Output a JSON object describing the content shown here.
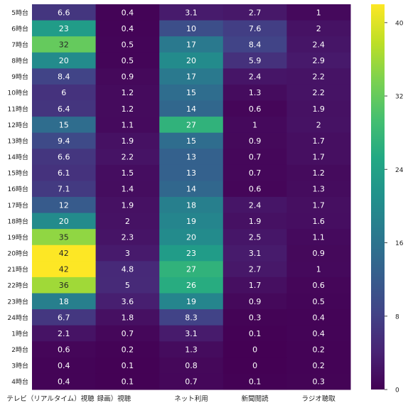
{
  "chart_data": {
    "type": "heatmap",
    "title": "",
    "xlabel": "",
    "ylabel": "",
    "columns": [
      "テレビ（リアルタイム）視聴",
      "録画）視聴",
      "ネット利用",
      "新聞閲読",
      "ラジオ聴取"
    ],
    "rows": [
      "5時台",
      "6時台",
      "7時台",
      "8時台",
      "9時台",
      "10時台",
      "11時台",
      "12時台",
      "13時台",
      "14時台",
      "15時台",
      "16時台",
      "17時台",
      "18時台",
      "19時台",
      "20時台",
      "21時台",
      "22時台",
      "23時台",
      "24時台",
      "1時台",
      "2時台",
      "3時台",
      "4時台"
    ],
    "values": [
      [
        6.6,
        0.4,
        3.1,
        2.7,
        1
      ],
      [
        23,
        0.4,
        10,
        7.6,
        2
      ],
      [
        32,
        0.5,
        17,
        8.4,
        2.4
      ],
      [
        20,
        0.5,
        20,
        5.9,
        2.9
      ],
      [
        8.4,
        0.9,
        17,
        2.4,
        2.2
      ],
      [
        6,
        1.2,
        15,
        1.3,
        2.2
      ],
      [
        6.4,
        1.2,
        14,
        0.6,
        1.9
      ],
      [
        15,
        1.1,
        27,
        1,
        2
      ],
      [
        9.4,
        1.9,
        15,
        0.9,
        1.7
      ],
      [
        6.6,
        2.2,
        13,
        0.7,
        1.7
      ],
      [
        6.1,
        1.5,
        13,
        0.7,
        1.2
      ],
      [
        7.1,
        1.4,
        14,
        0.6,
        1.3
      ],
      [
        12,
        1.9,
        18,
        2.4,
        1.7
      ],
      [
        20,
        2,
        19,
        1.9,
        1.6
      ],
      [
        35,
        2.3,
        20,
        2.5,
        1.1
      ],
      [
        42,
        3,
        23,
        3.1,
        0.9
      ],
      [
        42,
        4.8,
        27,
        2.7,
        1
      ],
      [
        36,
        5,
        26,
        1.7,
        0.6
      ],
      [
        18,
        3.6,
        19,
        0.9,
        0.5
      ],
      [
        6.7,
        1.8,
        8.3,
        0.3,
        0.4
      ],
      [
        2.1,
        0.7,
        3.1,
        0.1,
        0.4
      ],
      [
        0.6,
        0.2,
        1.3,
        0,
        0.2
      ],
      [
        0.4,
        0.1,
        0.8,
        0,
        0.2
      ],
      [
        0.4,
        0.1,
        0.7,
        0.1,
        0.3
      ]
    ],
    "vmin": 0,
    "vmax": 42,
    "colormap": "viridis",
    "colorbar_ticks": [
      0,
      8,
      16,
      24,
      32,
      40
    ]
  }
}
